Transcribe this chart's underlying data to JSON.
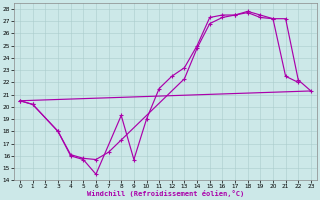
{
  "xlabel": "Windchill (Refroidissement éolien,°C)",
  "background_color": "#cce8e8",
  "grid_color": "#aacccc",
  "line_color": "#aa00aa",
  "xlim": [
    -0.5,
    23.5
  ],
  "ylim": [
    14,
    28.5
  ],
  "xticks": [
    0,
    1,
    2,
    3,
    4,
    5,
    6,
    7,
    8,
    9,
    10,
    11,
    12,
    13,
    14,
    15,
    16,
    17,
    18,
    19,
    20,
    21,
    22,
    23
  ],
  "yticks": [
    14,
    15,
    16,
    17,
    18,
    19,
    20,
    21,
    22,
    23,
    24,
    25,
    26,
    27,
    28
  ],
  "line1_x": [
    0,
    1,
    3,
    4,
    5,
    6,
    8,
    9,
    10,
    11,
    12,
    13,
    14,
    15,
    16,
    17,
    18,
    19,
    20,
    21,
    22
  ],
  "line1_y": [
    20.5,
    20.2,
    18.0,
    16.0,
    15.7,
    14.5,
    19.3,
    15.7,
    19.0,
    21.5,
    22.5,
    23.2,
    25.0,
    27.3,
    27.5,
    27.5,
    27.7,
    27.3,
    27.2,
    22.5,
    22.0
  ],
  "line2_x": [
    0,
    1,
    3,
    4,
    5,
    6,
    7,
    8,
    13,
    14,
    15,
    16,
    17,
    18,
    19,
    20,
    21,
    22,
    23
  ],
  "line2_y": [
    20.5,
    20.2,
    18.0,
    16.1,
    15.8,
    15.7,
    16.3,
    17.3,
    22.3,
    24.8,
    26.8,
    27.3,
    27.5,
    27.8,
    27.5,
    27.2,
    27.2,
    22.2,
    21.3
  ],
  "line3_x": [
    0,
    23
  ],
  "line3_y": [
    20.5,
    21.3
  ]
}
